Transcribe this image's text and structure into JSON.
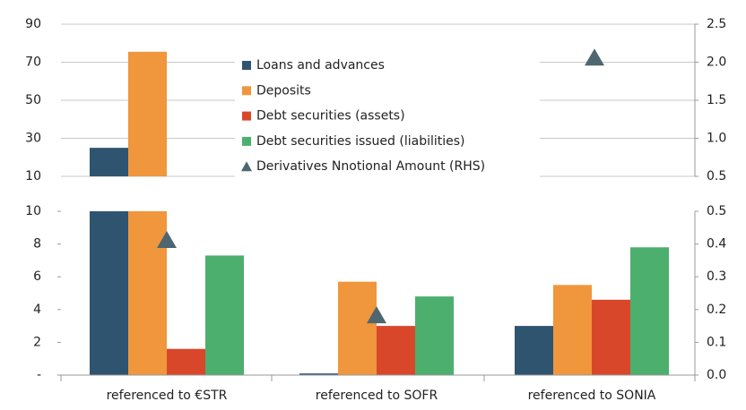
{
  "chart_data": {
    "type": "bar",
    "categories": [
      "referenced to €STR",
      "referenced to SOFR",
      "referenced to SONIA"
    ],
    "series": [
      {
        "name": "Loans and advances",
        "color": "#2e5470",
        "values": [
          25,
          0.1,
          3
        ]
      },
      {
        "name": "Deposits",
        "color": "#f0963c",
        "values": [
          75.5,
          5.7,
          5.5
        ]
      },
      {
        "name": "Debt securities (assets)",
        "color": "#d9472b",
        "values": [
          1.6,
          3.0,
          4.6
        ]
      },
      {
        "name": "Debt securities issued (liabilities)",
        "color": "#4caf6e",
        "values": [
          7.3,
          4.8,
          7.8
        ]
      },
      {
        "name": "Derivatives Nnotional Amount (RHS)",
        "color": "#4e6670",
        "axis": "y2",
        "marker": "triangle",
        "values": [
          0.41,
          0.18,
          2.05
        ]
      }
    ],
    "panels": [
      {
        "ylim": [
          10,
          90
        ],
        "yticks": [
          10,
          30,
          50,
          70,
          90
        ],
        "y2lim": [
          0.5,
          2.5
        ],
        "y2ticks": [
          0.5,
          {
            "value": 1,
            "label": "1.0"
          },
          1.5,
          {
            "value": 2,
            "label": "2.0"
          },
          2.5
        ],
        "grid": true
      },
      {
        "ylim": [
          0,
          10
        ],
        "yticks": [
          {
            "value": 0,
            "label": "-"
          },
          2,
          4,
          6,
          8,
          10
        ],
        "y2lim": [
          0,
          0.5
        ],
        "y2ticks": [
          {
            "value": 0,
            "label": "0.0"
          },
          0.1,
          0.2,
          0.3,
          0.4,
          0.5
        ],
        "grid": false
      }
    ]
  }
}
